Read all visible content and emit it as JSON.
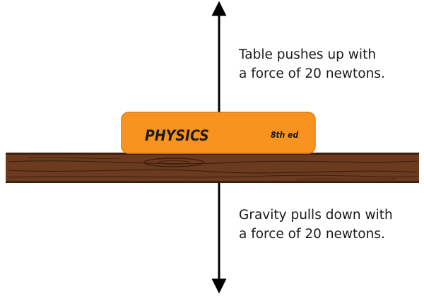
{
  "book": {
    "title": "PHYSICS",
    "edition": "8th ed"
  },
  "forces": {
    "up": {
      "line1": "Table pushes up with",
      "line2": "a force of 20 newtons."
    },
    "down": {
      "line1": "Gravity pulls down with",
      "line2": "a force of 20 newtons."
    }
  },
  "colors": {
    "book": "#f7931e",
    "book_edge": "#e07c10",
    "table": "#6b3a1f",
    "table_grain": "#3e200e",
    "arrow": "#000000",
    "text": "#1a1a1a"
  }
}
